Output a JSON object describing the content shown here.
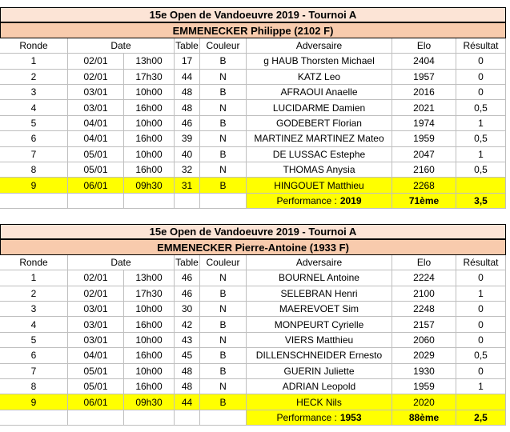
{
  "tables": [
    {
      "title": "15e Open de Vandoeuvre 2019 - Tournoi A",
      "player": "EMMENECKER Philippe (2102 F)",
      "headers": [
        "Ronde",
        "Date",
        "Table",
        "Couleur",
        "Adversaire",
        "Elo",
        "Résultat"
      ],
      "rows": [
        [
          "1",
          "02/01",
          "13h00",
          "17",
          "B",
          "g HAUB Thorsten Michael",
          "2404",
          "0"
        ],
        [
          "2",
          "02/01",
          "17h30",
          "44",
          "N",
          "KATZ Leo",
          "1957",
          "0"
        ],
        [
          "3",
          "03/01",
          "10h00",
          "48",
          "B",
          "AFRAOUI Anaelle",
          "2016",
          "0"
        ],
        [
          "4",
          "03/01",
          "16h00",
          "48",
          "N",
          "LUCIDARME Damien",
          "2021",
          "0,5"
        ],
        [
          "5",
          "04/01",
          "10h00",
          "46",
          "B",
          "GODEBERT Florian",
          "1974",
          "1"
        ],
        [
          "6",
          "04/01",
          "16h00",
          "39",
          "N",
          "MARTINEZ MARTINEZ Mateo",
          "1959",
          "0,5"
        ],
        [
          "7",
          "05/01",
          "10h00",
          "40",
          "B",
          "DE LUSSAC Estephe",
          "2047",
          "1"
        ],
        [
          "8",
          "05/01",
          "16h00",
          "32",
          "N",
          "THOMAS Anysia",
          "2160",
          "0,5"
        ],
        [
          "9",
          "06/01",
          "09h30",
          "31",
          "B",
          "HINGOUET Matthieu",
          "2268"
        ]
      ],
      "performance": {
        "label": "Performance :",
        "value": "2019",
        "rank": "71ème",
        "score": "3,5"
      }
    },
    {
      "title": "15e Open de Vandoeuvre 2019 - Tournoi A",
      "player": "EMMENECKER Pierre-Antoine (1933 F)",
      "headers": [
        "Ronde",
        "Date",
        "Table",
        "Couleur",
        "Adversaire",
        "Elo",
        "Résultat"
      ],
      "rows": [
        [
          "1",
          "02/01",
          "13h00",
          "46",
          "N",
          "BOURNEL Antoine",
          "2224",
          "0"
        ],
        [
          "2",
          "02/01",
          "17h30",
          "46",
          "B",
          "SELEBRAN Henri",
          "2100",
          "1"
        ],
        [
          "3",
          "03/01",
          "10h00",
          "30",
          "N",
          "MAEREVOET Sim",
          "2248",
          "0"
        ],
        [
          "4",
          "03/01",
          "16h00",
          "42",
          "B",
          "MONPEURT Cyrielle",
          "2157",
          "0"
        ],
        [
          "5",
          "03/01",
          "10h00",
          "43",
          "N",
          "VIERS Matthieu",
          "2060",
          "0"
        ],
        [
          "6",
          "04/01",
          "16h00",
          "45",
          "B",
          "DILLENSCHNEIDER Ernesto",
          "2029",
          "0,5"
        ],
        [
          "7",
          "05/01",
          "10h00",
          "48",
          "B",
          "GUERIN Juliette",
          "1930",
          "0"
        ],
        [
          "8",
          "05/01",
          "16h00",
          "48",
          "N",
          "ADRIAN Leopold",
          "1959",
          "1"
        ],
        [
          "9",
          "06/01",
          "09h30",
          "44",
          "B",
          "HECK Nils",
          "2020"
        ]
      ],
      "performance": {
        "label": "Performance :",
        "value": "1953",
        "rank": "88ème",
        "score": "2,5"
      }
    }
  ]
}
